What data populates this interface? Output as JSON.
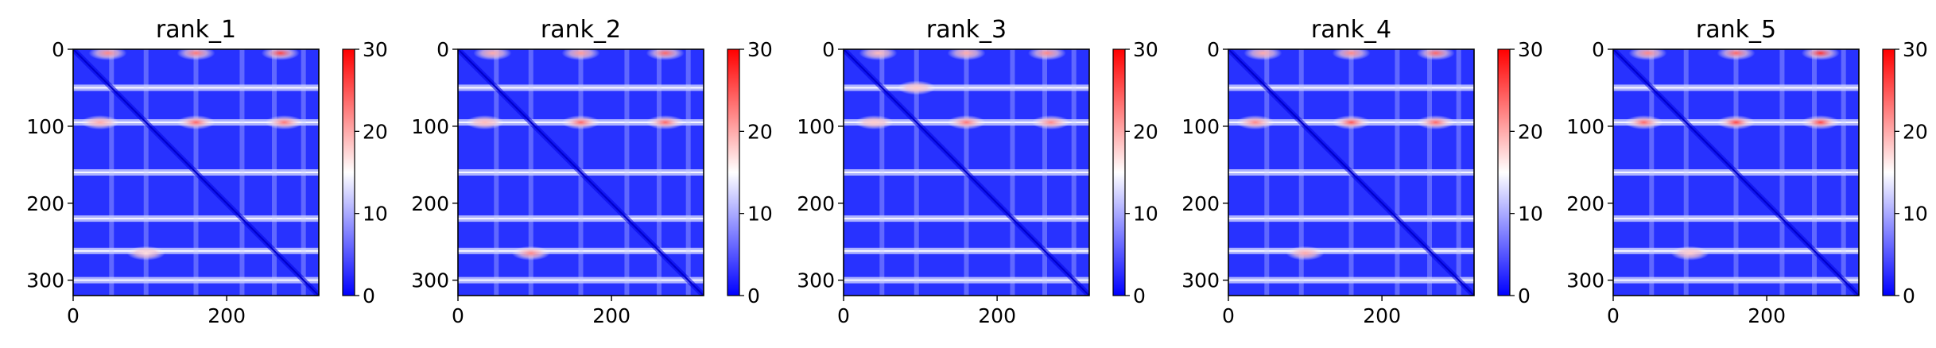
{
  "chart_data": [
    {
      "type": "heatmap",
      "title": "rank_1",
      "xticks": [
        0,
        200
      ],
      "yticks": [
        0,
        100,
        200,
        300
      ],
      "xlim": [
        0,
        320
      ],
      "ylim": [
        320,
        0
      ],
      "colorbar": {
        "ticks": [
          0,
          10,
          20,
          30
        ],
        "range": [
          0,
          30
        ]
      },
      "bands": [
        50,
        95,
        160,
        220,
        262,
        300
      ],
      "hotspots": [
        {
          "x": 45,
          "y": 5,
          "v": 22
        },
        {
          "x": 160,
          "y": 5,
          "v": 23
        },
        {
          "x": 270,
          "y": 5,
          "v": 26
        },
        {
          "x": 35,
          "y": 95,
          "v": 20
        },
        {
          "x": 160,
          "y": 95,
          "v": 24
        },
        {
          "x": 275,
          "y": 95,
          "v": 23
        },
        {
          "x": 95,
          "y": 265,
          "v": 17
        }
      ]
    },
    {
      "type": "heatmap",
      "title": "rank_2",
      "xticks": [
        0,
        200
      ],
      "yticks": [
        0,
        100,
        200,
        300
      ],
      "xlim": [
        0,
        320
      ],
      "ylim": [
        320,
        0
      ],
      "colorbar": {
        "ticks": [
          0,
          10,
          20,
          30
        ],
        "range": [
          0,
          30
        ]
      },
      "bands": [
        50,
        95,
        160,
        220,
        262,
        300
      ],
      "hotspots": [
        {
          "x": 45,
          "y": 5,
          "v": 20
        },
        {
          "x": 160,
          "y": 5,
          "v": 21
        },
        {
          "x": 270,
          "y": 5,
          "v": 24
        },
        {
          "x": 35,
          "y": 95,
          "v": 19
        },
        {
          "x": 160,
          "y": 95,
          "v": 24
        },
        {
          "x": 270,
          "y": 95,
          "v": 24
        },
        {
          "x": 95,
          "y": 265,
          "v": 22
        }
      ]
    },
    {
      "type": "heatmap",
      "title": "rank_3",
      "xticks": [
        0,
        200
      ],
      "yticks": [
        0,
        100,
        200,
        300
      ],
      "xlim": [
        0,
        320
      ],
      "ylim": [
        320,
        0
      ],
      "colorbar": {
        "ticks": [
          0,
          10,
          20,
          30
        ],
        "range": [
          0,
          30
        ]
      },
      "bands": [
        50,
        95,
        160,
        220,
        262,
        300
      ],
      "hotspots": [
        {
          "x": 45,
          "y": 5,
          "v": 19
        },
        {
          "x": 160,
          "y": 5,
          "v": 20
        },
        {
          "x": 265,
          "y": 5,
          "v": 22
        },
        {
          "x": 40,
          "y": 95,
          "v": 18
        },
        {
          "x": 160,
          "y": 95,
          "v": 23
        },
        {
          "x": 270,
          "y": 95,
          "v": 22
        },
        {
          "x": 95,
          "y": 50,
          "v": 18
        }
      ]
    },
    {
      "type": "heatmap",
      "title": "rank_4",
      "xticks": [
        0,
        200
      ],
      "yticks": [
        0,
        100,
        200,
        300
      ],
      "xlim": [
        0,
        320
      ],
      "ylim": [
        320,
        0
      ],
      "colorbar": {
        "ticks": [
          0,
          10,
          20,
          30
        ],
        "range": [
          0,
          30
        ]
      },
      "bands": [
        50,
        95,
        160,
        220,
        262,
        300
      ],
      "hotspots": [
        {
          "x": 45,
          "y": 5,
          "v": 20
        },
        {
          "x": 160,
          "y": 5,
          "v": 22
        },
        {
          "x": 270,
          "y": 5,
          "v": 24
        },
        {
          "x": 35,
          "y": 95,
          "v": 22
        },
        {
          "x": 160,
          "y": 95,
          "v": 25
        },
        {
          "x": 270,
          "y": 95,
          "v": 24
        },
        {
          "x": 100,
          "y": 265,
          "v": 20
        }
      ]
    },
    {
      "type": "heatmap",
      "title": "rank_5",
      "xticks": [
        0,
        200
      ],
      "yticks": [
        0,
        100,
        200,
        300
      ],
      "xlim": [
        0,
        320
      ],
      "ylim": [
        320,
        0
      ],
      "colorbar": {
        "ticks": [
          0,
          10,
          20,
          30
        ],
        "range": [
          0,
          30
        ]
      },
      "bands": [
        50,
        95,
        160,
        220,
        262,
        300
      ],
      "hotspots": [
        {
          "x": 45,
          "y": 5,
          "v": 22
        },
        {
          "x": 160,
          "y": 5,
          "v": 24
        },
        {
          "x": 270,
          "y": 5,
          "v": 27
        },
        {
          "x": 40,
          "y": 95,
          "v": 24
        },
        {
          "x": 160,
          "y": 95,
          "v": 26
        },
        {
          "x": 270,
          "y": 95,
          "v": 26
        },
        {
          "x": 100,
          "y": 265,
          "v": 18
        }
      ]
    }
  ]
}
